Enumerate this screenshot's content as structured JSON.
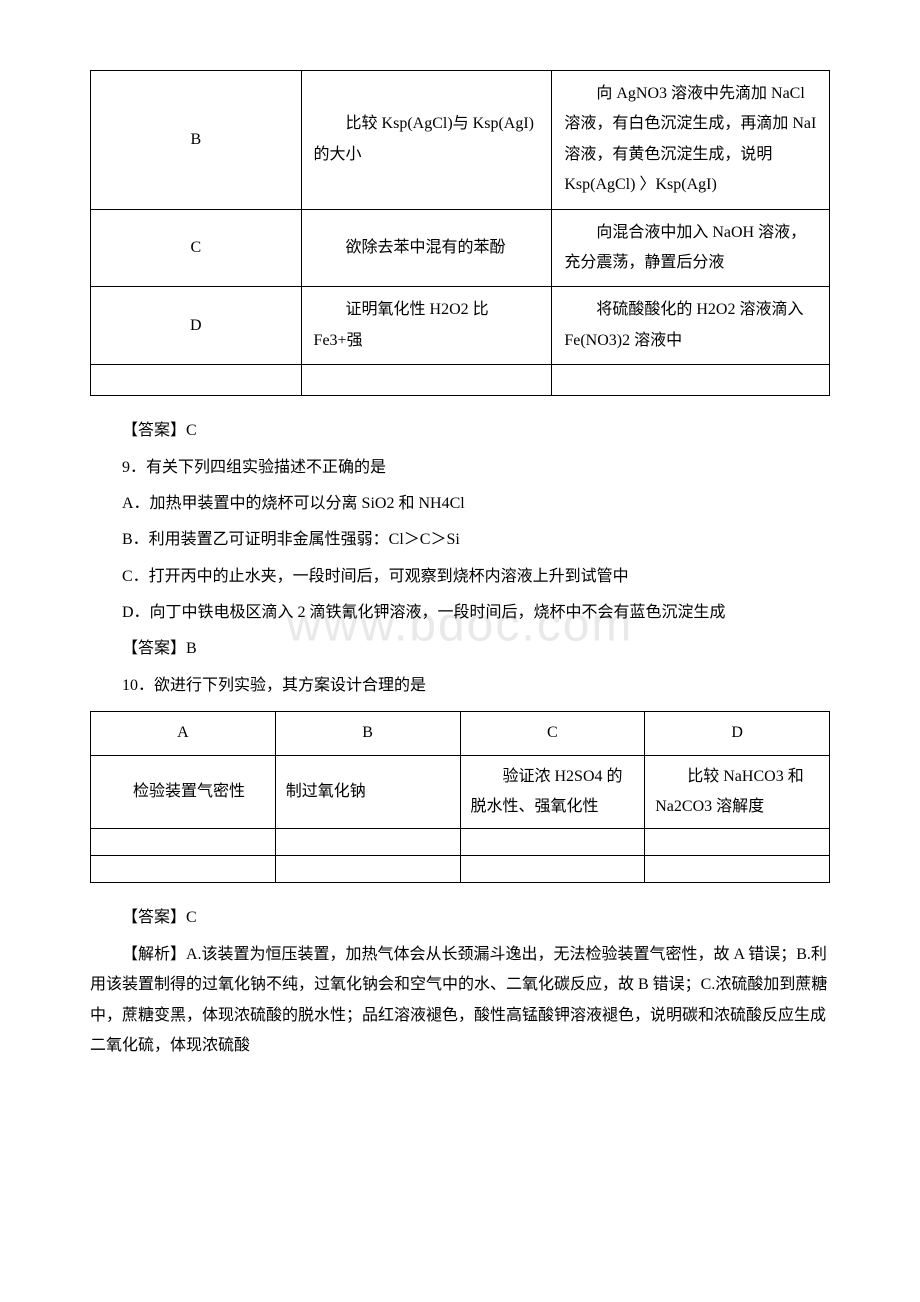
{
  "watermark": "www.bdoc.com",
  "table1": {
    "rows": [
      {
        "label": "B",
        "purpose": "比较 Ksp(AgCl)与 Ksp(AgI)的大小",
        "method": "向 AgNO3 溶液中先滴加 NaCl 溶液，有白色沉淀生成，再滴加 NaI 溶液，有黄色沉淀生成，说明 Ksp(AgCl) 〉Ksp(AgI)"
      },
      {
        "label": "C",
        "purpose": "欲除去苯中混有的苯酚",
        "method": "向混合液中加入 NaOH 溶液，充分震荡，静置后分液"
      },
      {
        "label": "D",
        "purpose": "证明氧化性 H2O2 比 Fe3+强",
        "method": "将硫酸酸化的 H2O2 溶液滴入 Fe(NO3)2 溶液中"
      }
    ]
  },
  "ans8": "【答案】C",
  "q9": {
    "stem": "9．有关下列四组实验描述不正确的是",
    "A": "A．加热甲装置中的烧杯可以分离 SiO2 和 NH4Cl",
    "B": "B．利用装置乙可证明非金属性强弱：Cl＞C＞Si",
    "C": "C．打开丙中的止水夹，一段时间后，可观察到烧杯内溶液上升到试管中",
    "D": "D．向丁中铁电极区滴入 2 滴铁氰化钾溶液，一段时间后，烧杯中不会有蓝色沉淀生成"
  },
  "ans9": "【答案】B",
  "q10": {
    "stem": "10．欲进行下列实验，其方案设计合理的是"
  },
  "table2": {
    "head": [
      "A",
      "B",
      "C",
      "D"
    ],
    "row": [
      "检验装置气密性",
      "制过氧化钠",
      "验证浓 H2SO4 的脱水性、强氧化性",
      "比较 NaHCO3 和 Na2CO3 溶解度"
    ]
  },
  "ans10": "【答案】C",
  "expl10": "【解析】A.该装置为恒压装置，加热气体会从长颈漏斗逸出，无法检验装置气密性，故 A 错误；B.利用该装置制得的过氧化钠不纯，过氧化钠会和空气中的水、二氧化碳反应，故 B 错误；C.浓硫酸加到蔗糖中，蔗糖变黑，体现浓硫酸的脱水性；品红溶液褪色，酸性高锰酸钾溶液褪色，说明碳和浓硫酸反应生成二氧化硫，体现浓硫酸"
}
